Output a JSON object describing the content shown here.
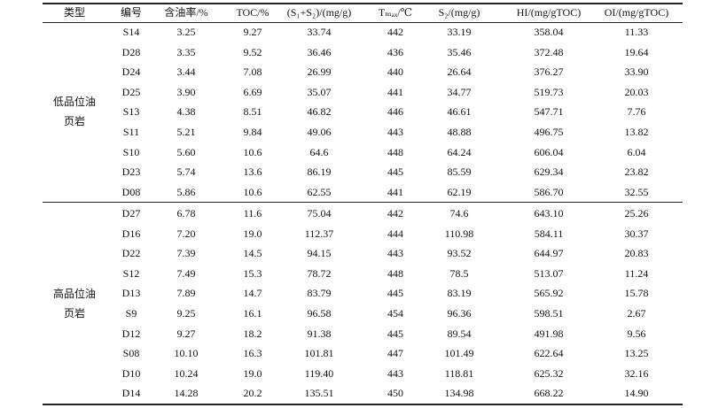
{
  "table": {
    "header": [
      "类型",
      "编号",
      "含油率/%",
      "TOC/%",
      "(S₁+S₂)/(mg/g)",
      "Tₘₐₓ/℃",
      "S₂/(mg/g)",
      "HI/(mg/gTOC)",
      "OI/(mg/gTOC)"
    ],
    "groups": [
      {
        "label": "低品位油页岩",
        "rows": [
          [
            "S14",
            "3.25",
            "9.27",
            "33.74",
            "442",
            "33.19",
            "358.04",
            "11.33"
          ],
          [
            "D28",
            "3.35",
            "9.52",
            "36.46",
            "436",
            "35.46",
            "372.48",
            "19.64"
          ],
          [
            "D24",
            "3.44",
            "7.08",
            "26.99",
            "440",
            "26.64",
            "376.27",
            "33.90"
          ],
          [
            "D25",
            "3.90",
            "6.69",
            "35.07",
            "441",
            "34.77",
            "519.73",
            "20.03"
          ],
          [
            "S13",
            "4.38",
            "8.51",
            "46.82",
            "446",
            "46.61",
            "547.71",
            "7.76"
          ],
          [
            "S11",
            "5.21",
            "9.84",
            "49.06",
            "443",
            "48.88",
            "496.75",
            "13.82"
          ],
          [
            "S10",
            "5.60",
            "10.6",
            "64.6",
            "448",
            "64.24",
            "606.04",
            "6.04"
          ],
          [
            "D23",
            "5.74",
            "13.6",
            "86.19",
            "445",
            "85.59",
            "629.34",
            "23.82"
          ],
          [
            "D08",
            "5.86",
            "10.6",
            "62.55",
            "441",
            "62.19",
            "586.70",
            "32.55"
          ]
        ]
      },
      {
        "label": "高品位油页岩",
        "rows": [
          [
            "D27",
            "6.78",
            "11.6",
            "75.04",
            "442",
            "74.6",
            "643.10",
            "25.26"
          ],
          [
            "D16",
            "7.20",
            "19.0",
            "112.37",
            "444",
            "110.98",
            "584.11",
            "30.37"
          ],
          [
            "D22",
            "7.39",
            "14.5",
            "94.15",
            "443",
            "93.52",
            "644.97",
            "20.83"
          ],
          [
            "S12",
            "7.49",
            "15.3",
            "78.72",
            "448",
            "78.5",
            "513.07",
            "11.24"
          ],
          [
            "D13",
            "7.89",
            "14.7",
            "83.79",
            "445",
            "83.19",
            "565.92",
            "15.78"
          ],
          [
            "S9",
            "9.25",
            "16.1",
            "96.58",
            "454",
            "96.36",
            "598.51",
            "2.67"
          ],
          [
            "D12",
            "9.27",
            "18.2",
            "91.38",
            "445",
            "89.54",
            "491.98",
            "9.56"
          ],
          [
            "S08",
            "10.10",
            "16.3",
            "101.81",
            "447",
            "101.49",
            "622.64",
            "13.25"
          ],
          [
            "D10",
            "10.24",
            "19.0",
            "119.40",
            "443",
            "118.81",
            "625.32",
            "32.16"
          ],
          [
            "D14",
            "14.28",
            "20.2",
            "135.51",
            "450",
            "134.98",
            "668.22",
            "14.90"
          ]
        ]
      }
    ]
  }
}
